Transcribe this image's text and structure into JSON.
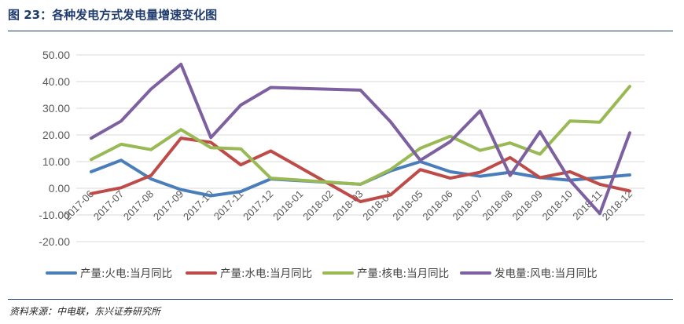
{
  "figure": {
    "title": "图 23：各种发电方式发电量增速变化图",
    "source": "资料来源：中电联，东兴证券研究所"
  },
  "chart_data": {
    "type": "line",
    "title": "",
    "xlabel": "",
    "ylabel": "",
    "ylim": [
      -20,
      50
    ],
    "y_ticks": [
      "50.00",
      "40.00",
      "30.00",
      "20.00",
      "10.00",
      "0.00",
      "-10.00",
      "-20.00"
    ],
    "grid": "horizontal",
    "legend_position": "bottom",
    "categories": [
      "2017-06",
      "2017-07",
      "2017-08",
      "2017-09",
      "2017-10",
      "2017-11",
      "2017-12",
      "2018-01",
      "2018-02",
      "2018-03",
      "2018-04",
      "2018-05",
      "2018-06",
      "2018-07",
      "2018-08",
      "2018-09",
      "2018-10",
      "2018-11",
      "2018-12"
    ],
    "series": [
      {
        "name": "产量:火电:当月同比",
        "color": "#4a7ebb",
        "values": [
          6.2,
          10.5,
          3.5,
          -0.5,
          -2.8,
          -1.2,
          3.5,
          null,
          null,
          1.5,
          6.5,
          10.0,
          6.2,
          4.5,
          6.0,
          4.0,
          3.0,
          4.0,
          5.0
        ]
      },
      {
        "name": "产量:水电:当月同比",
        "color": "#be4b48",
        "values": [
          -2.0,
          0.2,
          4.8,
          18.8,
          17.2,
          8.8,
          14.0,
          null,
          null,
          -5.0,
          -2.5,
          7.0,
          3.8,
          6.0,
          11.5,
          4.0,
          6.2,
          1.5,
          -1.0
        ]
      },
      {
        "name": "产量:核电:当月同比",
        "color": "#98b954",
        "values": [
          10.8,
          16.5,
          14.5,
          22.0,
          15.2,
          14.8,
          3.8,
          null,
          null,
          1.5,
          7.0,
          15.0,
          19.5,
          14.2,
          17.0,
          12.8,
          25.2,
          24.8,
          38.2
        ]
      },
      {
        "name": "发电量:风电:当月同比",
        "color": "#7d60a0",
        "values": [
          18.8,
          25.2,
          37.2,
          46.5,
          19.0,
          31.2,
          37.8,
          null,
          null,
          36.8,
          25.0,
          10.5,
          17.5,
          29.0,
          4.8,
          21.2,
          3.0,
          -9.5,
          20.8
        ]
      }
    ]
  }
}
